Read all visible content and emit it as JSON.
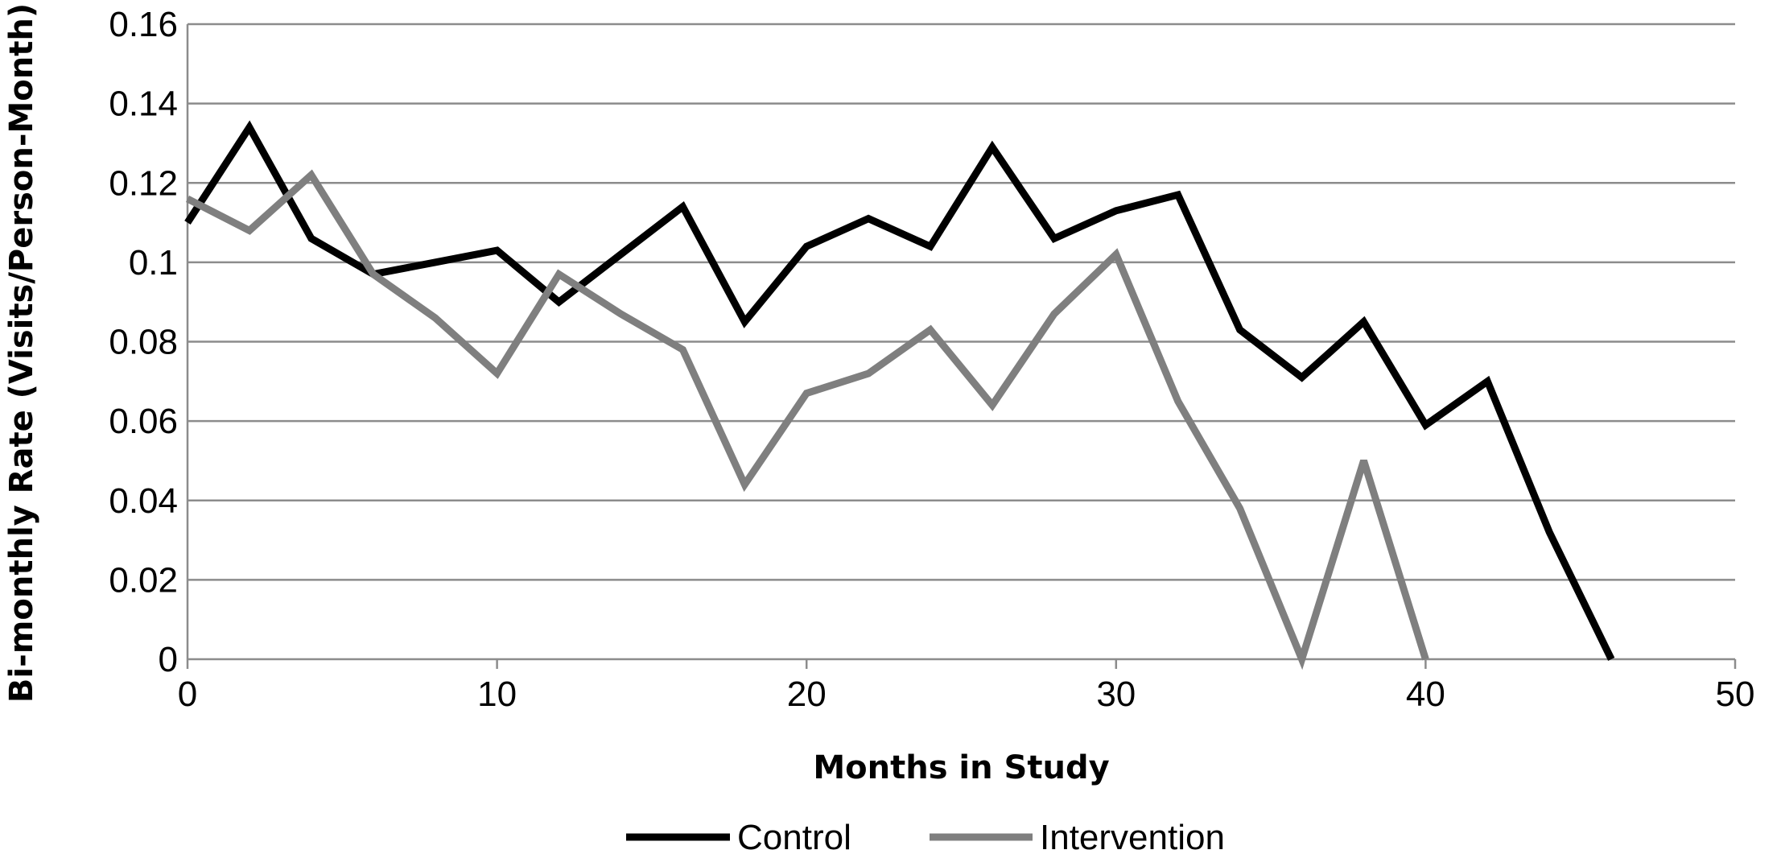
{
  "chart_data": {
    "type": "line",
    "title": "",
    "xlabel": "Months in Study",
    "ylabel": "Bi-monthly Rate (Visits/Person-Month)",
    "xlim": [
      0,
      50
    ],
    "ylim": [
      0,
      0.16
    ],
    "x_ticks": [
      0,
      10,
      20,
      30,
      40,
      50
    ],
    "x_tick_labels": [
      "0",
      "10",
      "20",
      "30",
      "40",
      "50"
    ],
    "y_ticks": [
      0,
      0.02,
      0.04,
      0.06,
      0.08,
      0.1,
      0.12,
      0.14,
      0.16
    ],
    "y_tick_labels": [
      "0",
      "0.02",
      "0.04",
      "0.06",
      "0.08",
      "0.1",
      "0.12",
      "0.14",
      "0.16"
    ],
    "grid": "horizontal",
    "legend_position": "bottom-center",
    "series": [
      {
        "name": "Control",
        "color": "#000000",
        "x": [
          0,
          2,
          4,
          6,
          8,
          10,
          12,
          14,
          16,
          18,
          20,
          22,
          24,
          26,
          28,
          30,
          32,
          34,
          36,
          38,
          40,
          42,
          44,
          46
        ],
        "y": [
          0.11,
          0.134,
          0.106,
          0.097,
          0.1,
          0.103,
          0.09,
          0.102,
          0.114,
          0.085,
          0.104,
          0.111,
          0.104,
          0.129,
          0.106,
          0.113,
          0.117,
          0.083,
          0.071,
          0.085,
          0.059,
          0.07,
          0.032,
          0.0
        ]
      },
      {
        "name": "Intervention",
        "color": "#7f7f7f",
        "x": [
          0,
          2,
          4,
          6,
          8,
          10,
          12,
          14,
          16,
          18,
          20,
          22,
          24,
          26,
          28,
          30,
          32,
          34,
          36,
          38,
          40
        ],
        "y": [
          0.116,
          0.108,
          0.122,
          0.097,
          0.086,
          0.072,
          0.097,
          0.087,
          0.078,
          0.044,
          0.067,
          0.072,
          0.083,
          0.064,
          0.087,
          0.102,
          0.065,
          0.038,
          0.0,
          0.05,
          0.0
        ]
      }
    ]
  }
}
